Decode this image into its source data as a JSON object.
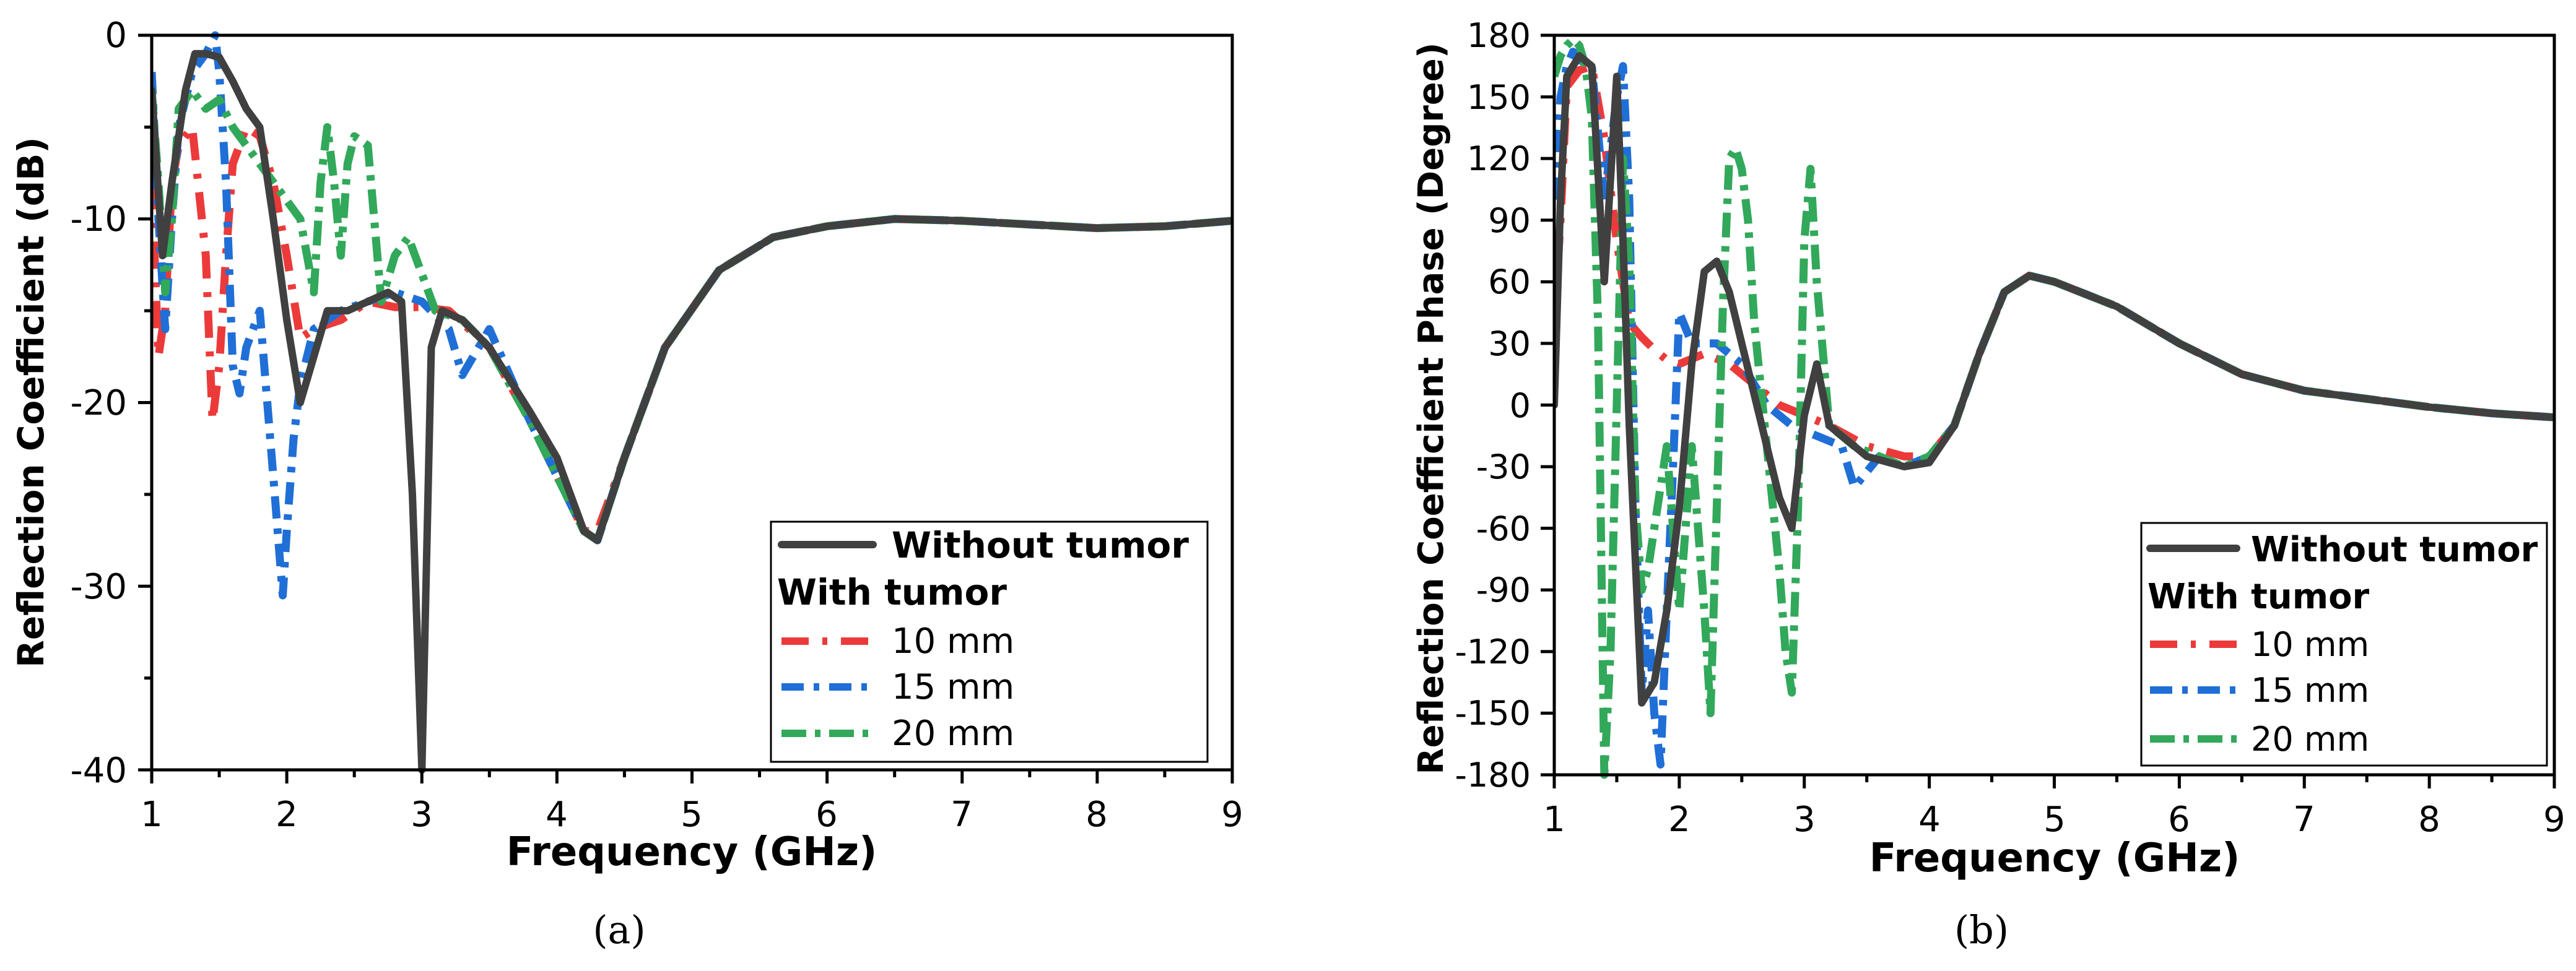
{
  "colors": {
    "without_tumor": "#404040",
    "mm10": "#ec3a3a",
    "mm15": "#1f6fd6",
    "mm20": "#32a85a",
    "axis": "#000000",
    "background": "#ffffff"
  },
  "chart_data": [
    {
      "type": "line",
      "panel": "a",
      "caption": "(a)",
      "xlabel": "Frequency (GHz)",
      "ylabel": "Reflection Coefficient (dB)",
      "xlim": [
        1,
        9
      ],
      "ylim": [
        -40,
        0
      ],
      "xticks": [
        1,
        2,
        3,
        4,
        5,
        6,
        7,
        8,
        9
      ],
      "yticks": [
        0,
        -10,
        -20,
        -30,
        -40
      ],
      "xtick_labels": [
        "1",
        "2",
        "3",
        "4",
        "5",
        "6",
        "7",
        "8",
        "9"
      ],
      "ytick_labels": [
        "0",
        "-10",
        "-20",
        "-30",
        "-40"
      ],
      "legend": {
        "placement": "bottom-right",
        "main_entry": "Without tumor",
        "group_title": "With tumor",
        "entries": [
          "10 mm",
          "15 mm",
          "20 mm"
        ]
      },
      "series": [
        {
          "name": "Without tumor",
          "key": "without_tumor",
          "x": [
            1.0,
            1.08,
            1.15,
            1.25,
            1.32,
            1.4,
            1.5,
            1.6,
            1.7,
            1.8,
            1.9,
            2.0,
            2.1,
            2.2,
            2.3,
            2.45,
            2.6,
            2.75,
            2.85,
            2.93,
            3.0,
            3.07,
            3.15,
            3.3,
            3.5,
            3.8,
            4.0,
            4.2,
            4.3,
            4.5,
            4.8,
            5.2,
            5.6,
            6.0,
            6.5,
            7.0,
            7.5,
            8.0,
            8.5,
            9.0
          ],
          "y": [
            -3.0,
            -12.0,
            -8.0,
            -3.0,
            -1.0,
            -1.0,
            -1.2,
            -2.5,
            -4.0,
            -5.0,
            -10.0,
            -15.5,
            -20.0,
            -17.5,
            -15.0,
            -15.0,
            -14.5,
            -14.0,
            -14.5,
            -25.0,
            -40.0,
            -17.0,
            -15.0,
            -15.5,
            -17.0,
            -20.5,
            -23.0,
            -27.0,
            -27.5,
            -23.0,
            -17.0,
            -12.8,
            -11.0,
            -10.4,
            -10.0,
            -10.1,
            -10.3,
            -10.5,
            -10.4,
            -10.1
          ]
        },
        {
          "name": "10 mm",
          "key": "mm10",
          "x": [
            1.0,
            1.05,
            1.1,
            1.15,
            1.2,
            1.3,
            1.4,
            1.45,
            1.5,
            1.55,
            1.6,
            1.7,
            1.8,
            1.9,
            2.0,
            2.1,
            2.2,
            2.4,
            2.6,
            2.8,
            3.0,
            3.2,
            3.5,
            3.8,
            4.0,
            4.2,
            4.3,
            4.5,
            4.8,
            5.2,
            5.6,
            6.0,
            6.5,
            7.0,
            7.5,
            8.0,
            8.5,
            9.0
          ],
          "y": [
            -8.0,
            -17.5,
            -15.0,
            -8.0,
            -6.0,
            -5.0,
            -12.0,
            -21.0,
            -18.0,
            -12.0,
            -7.0,
            -5.0,
            -5.5,
            -8.0,
            -12.0,
            -16.5,
            -16.0,
            -15.5,
            -14.5,
            -14.8,
            -14.8,
            -15.0,
            -17.0,
            -21.0,
            -24.0,
            -27.0,
            -27.0,
            -23.0,
            -17.0,
            -12.8,
            -11.0,
            -10.4,
            -10.0,
            -10.1,
            -10.3,
            -10.5,
            -10.4,
            -10.1
          ]
        },
        {
          "name": "15 mm",
          "key": "mm15",
          "x": [
            1.0,
            1.05,
            1.1,
            1.15,
            1.2,
            1.3,
            1.4,
            1.47,
            1.5,
            1.55,
            1.6,
            1.65,
            1.7,
            1.8,
            1.9,
            1.97,
            2.0,
            2.05,
            2.1,
            2.2,
            2.4,
            2.6,
            2.8,
            3.0,
            3.2,
            3.3,
            3.5,
            3.8,
            4.0,
            4.2,
            4.3,
            4.5,
            4.8,
            5.2,
            5.6,
            6.0,
            6.5,
            7.0,
            7.5,
            8.0,
            8.5,
            9.0
          ],
          "y": [
            -2.0,
            -10.0,
            -16.0,
            -10.0,
            -5.0,
            -2.0,
            -1.0,
            0.0,
            -2.0,
            -8.0,
            -18.0,
            -19.5,
            -17.0,
            -15.0,
            -24.0,
            -30.5,
            -27.0,
            -22.0,
            -19.0,
            -16.0,
            -15.0,
            -14.5,
            -14.0,
            -14.5,
            -16.0,
            -18.5,
            -16.0,
            -21.0,
            -24.0,
            -27.0,
            -27.5,
            -23.0,
            -17.0,
            -12.8,
            -11.0,
            -10.4,
            -10.0,
            -10.1,
            -10.3,
            -10.5,
            -10.4,
            -10.1
          ]
        },
        {
          "name": "20 mm",
          "key": "mm20",
          "x": [
            1.0,
            1.05,
            1.1,
            1.15,
            1.2,
            1.3,
            1.4,
            1.5,
            1.6,
            1.7,
            1.8,
            1.9,
            2.0,
            2.1,
            2.2,
            2.25,
            2.3,
            2.35,
            2.4,
            2.45,
            2.5,
            2.6,
            2.7,
            2.8,
            2.9,
            3.0,
            3.1,
            3.3,
            3.5,
            3.8,
            4.0,
            4.2,
            4.3,
            4.5,
            4.8,
            5.2,
            5.6,
            6.0,
            6.5,
            7.0,
            7.5,
            8.0,
            8.5,
            9.0
          ],
          "y": [
            -3.0,
            -8.0,
            -14.0,
            -10.0,
            -4.0,
            -3.0,
            -4.0,
            -3.5,
            -5.0,
            -6.0,
            -7.0,
            -8.0,
            -9.0,
            -10.0,
            -14.0,
            -8.0,
            -5.0,
            -8.0,
            -12.0,
            -7.0,
            -5.5,
            -6.0,
            -14.5,
            -12.0,
            -11.0,
            -13.0,
            -15.0,
            -15.5,
            -17.0,
            -21.0,
            -24.0,
            -27.0,
            -27.5,
            -23.0,
            -17.0,
            -12.8,
            -11.0,
            -10.4,
            -10.0,
            -10.1,
            -10.3,
            -10.5,
            -10.4,
            -10.1
          ]
        }
      ]
    },
    {
      "type": "line",
      "panel": "b",
      "caption": "(b)",
      "xlabel": "Frequency (GHz)",
      "ylabel": "Reflection Coefficient Phase (Degree)",
      "xlim": [
        1,
        9
      ],
      "ylim": [
        -180,
        180
      ],
      "xticks": [
        1,
        2,
        3,
        4,
        5,
        6,
        7,
        8,
        9
      ],
      "yticks": [
        180,
        150,
        120,
        90,
        60,
        30,
        0,
        -30,
        -60,
        -90,
        -120,
        -150,
        -180
      ],
      "xtick_labels": [
        "1",
        "2",
        "3",
        "4",
        "5",
        "6",
        "7",
        "8",
        "9"
      ],
      "ytick_labels": [
        "180",
        "150",
        "120",
        "90",
        "60",
        "30",
        "0",
        "-30",
        "-60",
        "-90",
        "-120",
        "-150",
        "-180"
      ],
      "legend": {
        "placement": "bottom-right",
        "main_entry": "Without tumor",
        "group_title": "With tumor",
        "entries": [
          "10 mm",
          "15 mm",
          "20 mm"
        ]
      },
      "series": [
        {
          "name": "Without tumor",
          "key": "without_tumor",
          "x": [
            1.0,
            1.05,
            1.1,
            1.2,
            1.3,
            1.4,
            1.5,
            1.55,
            1.6,
            1.7,
            1.8,
            1.9,
            2.0,
            2.1,
            2.2,
            2.3,
            2.4,
            2.5,
            2.6,
            2.7,
            2.8,
            2.9,
            3.0,
            3.1,
            3.2,
            3.5,
            3.8,
            4.0,
            4.2,
            4.4,
            4.6,
            4.8,
            5.0,
            5.5,
            6.0,
            6.5,
            7.0,
            7.5,
            8.0,
            8.5,
            9.0
          ],
          "y": [
            0.0,
            100.0,
            160.0,
            170.0,
            165.0,
            60.0,
            160.0,
            80.0,
            -10.0,
            -145.0,
            -135.0,
            -100.0,
            -50.0,
            20.0,
            65.0,
            70.0,
            55.0,
            30.0,
            5.0,
            -20.0,
            -45.0,
            -60.0,
            -5.0,
            20.0,
            -10.0,
            -25.0,
            -30.0,
            -28.0,
            -10.0,
            25.0,
            55.0,
            63.0,
            60.0,
            48.0,
            30.0,
            15.0,
            7.0,
            3.0,
            -1.0,
            -4.0,
            -6.0
          ]
        },
        {
          "name": "10 mm",
          "key": "mm10",
          "x": [
            1.0,
            1.05,
            1.1,
            1.2,
            1.3,
            1.4,
            1.5,
            1.6,
            1.7,
            1.8,
            1.9,
            2.0,
            2.2,
            2.4,
            2.6,
            2.8,
            3.0,
            3.2,
            3.5,
            3.8,
            4.0,
            4.2,
            4.4,
            4.6,
            4.8,
            5.0,
            5.5,
            6.0,
            6.5,
            7.0,
            7.5,
            8.0,
            8.5,
            9.0
          ],
          "y": [
            40.0,
            90.0,
            155.0,
            163.0,
            165.0,
            130.0,
            80.0,
            40.0,
            33.0,
            27.0,
            22.0,
            20.0,
            25.0,
            20.0,
            10.0,
            0.0,
            -5.0,
            -10.0,
            -20.0,
            -25.0,
            -25.0,
            -10.0,
            25.0,
            55.0,
            63.0,
            60.0,
            48.0,
            30.0,
            15.0,
            7.0,
            3.0,
            -1.0,
            -4.0,
            -6.0
          ]
        },
        {
          "name": "15 mm",
          "key": "mm15",
          "x": [
            1.0,
            1.05,
            1.1,
            1.15,
            1.2,
            1.3,
            1.4,
            1.5,
            1.55,
            1.6,
            1.65,
            1.7,
            1.75,
            1.8,
            1.85,
            1.9,
            1.95,
            2.0,
            2.1,
            2.3,
            2.5,
            2.7,
            2.9,
            3.1,
            3.3,
            3.4,
            3.6,
            3.8,
            4.0,
            4.2,
            4.4,
            4.6,
            4.8,
            5.0,
            5.5,
            6.0,
            6.5,
            7.0,
            7.5,
            8.0,
            8.5,
            9.0
          ],
          "y": [
            100.0,
            150.0,
            165.0,
            172.0,
            168.0,
            165.0,
            100.0,
            150.0,
            165.0,
            100.0,
            -50.0,
            -140.0,
            -100.0,
            -150.0,
            -175.0,
            -100.0,
            -30.0,
            45.0,
            30.0,
            30.0,
            20.0,
            0.0,
            -10.0,
            -15.0,
            -20.0,
            -40.0,
            -25.0,
            -30.0,
            -25.0,
            -10.0,
            25.0,
            55.0,
            63.0,
            60.0,
            48.0,
            30.0,
            15.0,
            7.0,
            3.0,
            -1.0,
            -4.0,
            -6.0
          ]
        },
        {
          "name": "20 mm",
          "key": "mm20",
          "x": [
            1.0,
            1.05,
            1.1,
            1.15,
            1.2,
            1.25,
            1.3,
            1.35,
            1.4,
            1.45,
            1.5,
            1.55,
            1.6,
            1.65,
            1.7,
            1.75,
            1.8,
            1.85,
            1.9,
            2.0,
            2.1,
            2.2,
            2.25,
            2.3,
            2.35,
            2.4,
            2.45,
            2.5,
            2.55,
            2.6,
            2.7,
            2.8,
            2.85,
            2.9,
            2.95,
            3.0,
            3.05,
            3.1,
            3.2,
            3.4,
            3.6,
            3.8,
            4.0,
            4.2,
            4.4,
            4.6,
            4.8,
            5.0,
            5.5,
            6.0,
            6.5,
            7.0,
            7.5,
            8.0,
            8.5,
            9.0
          ],
          "y": [
            160.0,
            170.0,
            175.0,
            178.0,
            175.0,
            165.0,
            140.0,
            40.0,
            -180.0,
            -120.0,
            0.0,
            120.0,
            70.0,
            -50.0,
            -90.0,
            -80.0,
            -60.0,
            -40.0,
            -20.0,
            -100.0,
            -20.0,
            -100.0,
            -150.0,
            -50.0,
            50.0,
            120.0,
            125.0,
            115.0,
            90.0,
            40.0,
            -20.0,
            -80.0,
            -120.0,
            -140.0,
            -50.0,
            80.0,
            115.0,
            60.0,
            -10.0,
            -20.0,
            -25.0,
            -30.0,
            -25.0,
            -10.0,
            25.0,
            55.0,
            63.0,
            60.0,
            48.0,
            30.0,
            15.0,
            7.0,
            3.0,
            -1.0,
            -4.0,
            -6.0
          ]
        }
      ]
    }
  ]
}
